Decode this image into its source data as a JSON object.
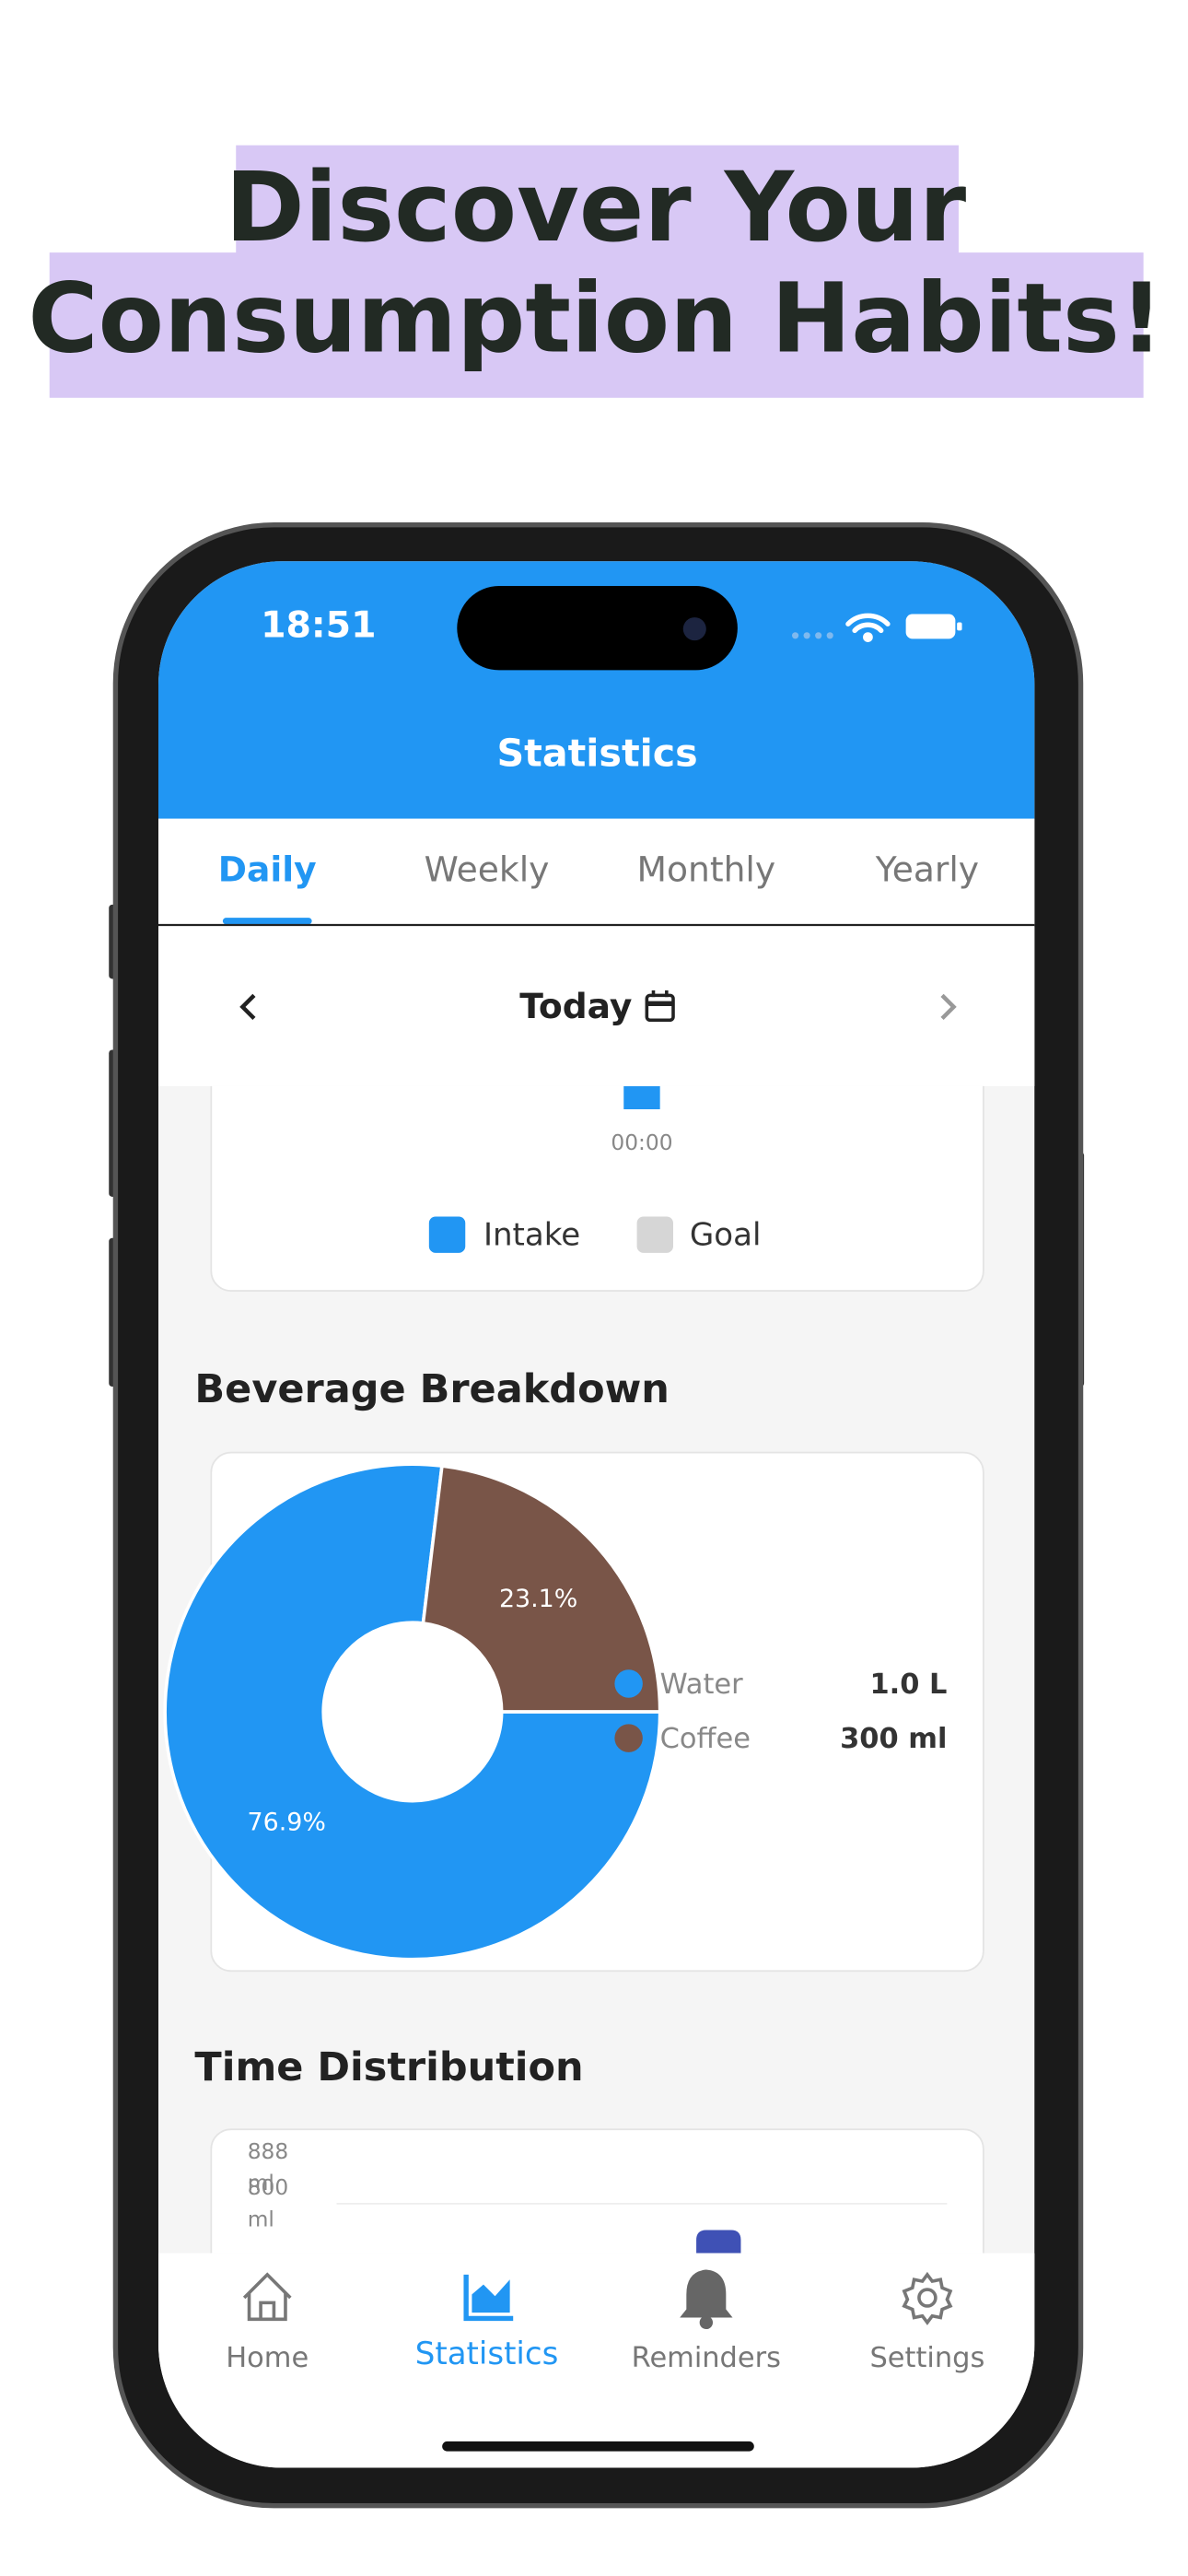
{
  "headline": [
    "Discover Your",
    "Consumption Habits!"
  ],
  "status_bar": {
    "time": "18:51"
  },
  "header": {
    "title": "Statistics"
  },
  "tabs": [
    "Daily",
    "Weekly",
    "Monthly",
    "Yearly"
  ],
  "date_nav": {
    "label": "Today"
  },
  "intake_chart": {
    "x_label": "00:00",
    "legend": [
      "Intake",
      "Goal"
    ]
  },
  "beverage_breakdown": {
    "title": "Beverage Breakdown",
    "chart_data": {
      "type": "pie",
      "categories": [
        "Water",
        "Coffee"
      ],
      "values": [
        76.9,
        23.1
      ],
      "value_labels": [
        "76.9%",
        "23.1%"
      ],
      "colors": [
        "#2196f3",
        "#795548"
      ],
      "amounts": [
        "1.0 L",
        "300 ml"
      ]
    }
  },
  "time_distribution": {
    "title": "Time Distribution",
    "y_labels": [
      [
        "888",
        "ml"
      ],
      [
        "800",
        "ml"
      ]
    ]
  },
  "nav": [
    "Home",
    "Statistics",
    "Reminders",
    "Settings"
  ]
}
